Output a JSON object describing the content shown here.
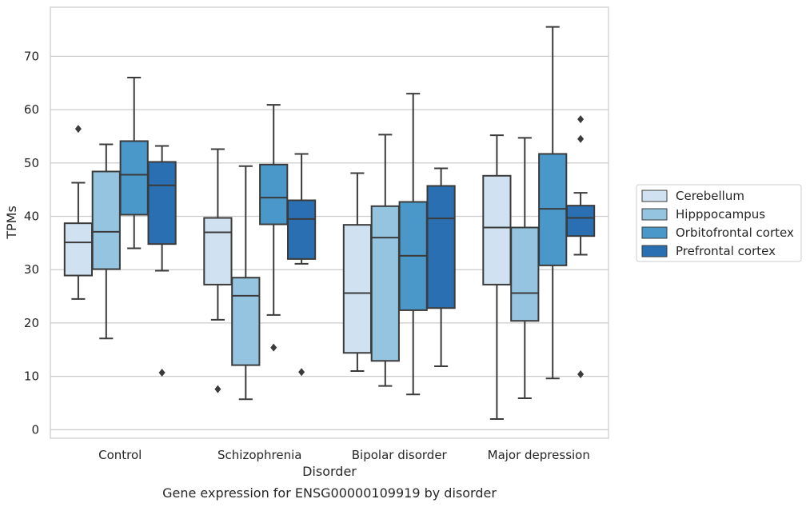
{
  "chart_data": {
    "type": "box",
    "title": "",
    "caption": "Gene expression for ENSG00000109919 by disorder",
    "xlabel": "Disorder",
    "ylabel": "TPMs",
    "categories": [
      "Control",
      "Schizophrenia",
      "Bipolar disorder",
      "Major depression"
    ],
    "y_ticks": [
      0,
      10,
      20,
      30,
      40,
      50,
      60,
      70
    ],
    "ylim": [
      -1.6,
      79.2
    ],
    "grid": "horizontal",
    "legend_position": "right",
    "series": [
      {
        "name": "Cerebellum",
        "color": "#d0e1f2",
        "boxes": [
          {
            "whisker_low": 24.5,
            "q1": 28.9,
            "median": 35.1,
            "q3": 38.7,
            "whisker_high": 46.3,
            "outliers": [
              56.4
            ]
          },
          {
            "whisker_low": 20.6,
            "q1": 27.2,
            "median": 37.0,
            "q3": 39.7,
            "whisker_high": 52.6,
            "outliers": [
              7.6
            ]
          },
          {
            "whisker_low": 11.0,
            "q1": 14.4,
            "median": 25.6,
            "q3": 38.4,
            "whisker_high": 48.1,
            "outliers": []
          },
          {
            "whisker_low": 2.0,
            "q1": 27.2,
            "median": 37.9,
            "q3": 47.6,
            "whisker_high": 55.2,
            "outliers": []
          }
        ]
      },
      {
        "name": "Hipppocampus",
        "color": "#94c4df",
        "boxes": [
          {
            "whisker_low": 17.1,
            "q1": 30.1,
            "median": 37.1,
            "q3": 48.4,
            "whisker_high": 53.5,
            "outliers": []
          },
          {
            "whisker_low": 5.7,
            "q1": 12.1,
            "median": 25.1,
            "q3": 28.5,
            "whisker_high": 49.4,
            "outliers": []
          },
          {
            "whisker_low": 8.2,
            "q1": 12.9,
            "median": 36.0,
            "q3": 41.9,
            "whisker_high": 55.3,
            "outliers": []
          },
          {
            "whisker_low": 5.9,
            "q1": 20.4,
            "median": 25.6,
            "q3": 37.9,
            "whisker_high": 54.7,
            "outliers": []
          }
        ]
      },
      {
        "name": "Orbitofrontal cortex",
        "color": "#4a98c9",
        "boxes": [
          {
            "whisker_low": 34.0,
            "q1": 40.3,
            "median": 47.8,
            "q3": 54.1,
            "whisker_high": 66.0,
            "outliers": []
          },
          {
            "whisker_low": 21.5,
            "q1": 38.5,
            "median": 43.5,
            "q3": 49.7,
            "whisker_high": 60.9,
            "outliers": [
              15.4
            ]
          },
          {
            "whisker_low": 6.6,
            "q1": 22.4,
            "median": 32.6,
            "q3": 42.7,
            "whisker_high": 63.0,
            "outliers": []
          },
          {
            "whisker_low": 9.6,
            "q1": 30.8,
            "median": 41.4,
            "q3": 51.7,
            "whisker_high": 75.5,
            "outliers": []
          }
        ]
      },
      {
        "name": "Prefrontal cortex",
        "color": "#2a6fb1",
        "boxes": [
          {
            "whisker_low": 29.8,
            "q1": 34.8,
            "median": 45.8,
            "q3": 50.2,
            "whisker_high": 53.2,
            "outliers": [
              10.7
            ]
          },
          {
            "whisker_low": 31.1,
            "q1": 32.0,
            "median": 39.5,
            "q3": 43.0,
            "whisker_high": 51.7,
            "outliers": [
              10.8
            ]
          },
          {
            "whisker_low": 11.9,
            "q1": 22.8,
            "median": 39.6,
            "q3": 45.7,
            "whisker_high": 49.0,
            "outliers": []
          },
          {
            "whisker_low": 32.8,
            "q1": 36.3,
            "median": 39.7,
            "q3": 42.0,
            "whisker_high": 44.4,
            "outliers": [
              10.4,
              54.5,
              58.2
            ]
          }
        ]
      }
    ]
  }
}
